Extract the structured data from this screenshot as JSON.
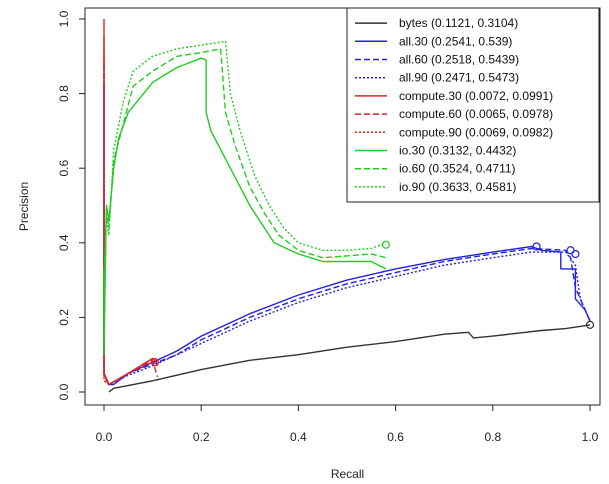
{
  "chart_data": {
    "type": "line",
    "title": "",
    "xlabel": "Recall",
    "ylabel": "Precision",
    "xlim": [
      0,
      1
    ],
    "ylim": [
      0,
      1
    ],
    "xticks": [
      "0.0",
      "0.2",
      "0.4",
      "0.6",
      "0.8",
      "1.0"
    ],
    "yticks": [
      "0.0",
      "0.2",
      "0.4",
      "0.6",
      "0.8",
      "1.0"
    ],
    "grid": false,
    "legend_position": "top-right",
    "series": [
      {
        "name": "bytes (0.1121, 0.3104)",
        "color": "#333333",
        "dash": "solid",
        "points": [
          [
            0.01,
            0.0
          ],
          [
            0.02,
            0.01
          ],
          [
            0.1,
            0.03
          ],
          [
            0.2,
            0.06
          ],
          [
            0.3,
            0.085
          ],
          [
            0.4,
            0.1
          ],
          [
            0.5,
            0.12
          ],
          [
            0.6,
            0.135
          ],
          [
            0.7,
            0.155
          ],
          [
            0.75,
            0.16
          ],
          [
            0.76,
            0.145
          ],
          [
            0.8,
            0.15
          ],
          [
            0.9,
            0.165
          ],
          [
            0.95,
            0.17
          ],
          [
            1.0,
            0.18
          ]
        ],
        "end_marker": [
          1.0,
          0.18
        ]
      },
      {
        "name": "all.30 (0.2541, 0.539)",
        "color": "#2222dd",
        "dash": "solid",
        "points": [
          [
            0.0,
            0.82
          ],
          [
            0.0,
            0.05
          ],
          [
            0.01,
            0.02
          ],
          [
            0.02,
            0.02
          ],
          [
            0.05,
            0.05
          ],
          [
            0.1,
            0.08
          ],
          [
            0.15,
            0.11
          ],
          [
            0.2,
            0.15
          ],
          [
            0.3,
            0.21
          ],
          [
            0.4,
            0.26
          ],
          [
            0.5,
            0.3
          ],
          [
            0.6,
            0.33
          ],
          [
            0.7,
            0.355
          ],
          [
            0.8,
            0.375
          ],
          [
            0.88,
            0.39
          ],
          [
            0.9,
            0.38
          ],
          [
            0.94,
            0.375
          ],
          [
            0.94,
            0.33
          ],
          [
            0.97,
            0.33
          ],
          [
            0.97,
            0.25
          ],
          [
            0.99,
            0.22
          ],
          [
            1.0,
            0.19
          ]
        ],
        "end_marker": [
          0.89,
          0.39
        ]
      },
      {
        "name": "all.60 (0.2518, 0.5439)",
        "color": "#2222dd",
        "dash": "dashed",
        "points": [
          [
            0.0,
            0.88
          ],
          [
            0.0,
            0.05
          ],
          [
            0.01,
            0.02
          ],
          [
            0.05,
            0.05
          ],
          [
            0.1,
            0.075
          ],
          [
            0.15,
            0.1
          ],
          [
            0.2,
            0.14
          ],
          [
            0.3,
            0.2
          ],
          [
            0.4,
            0.25
          ],
          [
            0.5,
            0.29
          ],
          [
            0.6,
            0.32
          ],
          [
            0.7,
            0.35
          ],
          [
            0.8,
            0.37
          ],
          [
            0.88,
            0.385
          ],
          [
            0.95,
            0.38
          ],
          [
            0.96,
            0.36
          ],
          [
            0.97,
            0.28
          ],
          [
            0.99,
            0.22
          ],
          [
            1.0,
            0.19
          ]
        ],
        "end_marker": [
          0.96,
          0.38
        ]
      },
      {
        "name": "all.90 (0.2471, 0.5473)",
        "color": "#2222dd",
        "dash": "dotted",
        "points": [
          [
            0.0,
            0.91
          ],
          [
            0.0,
            0.05
          ],
          [
            0.01,
            0.02
          ],
          [
            0.05,
            0.045
          ],
          [
            0.1,
            0.07
          ],
          [
            0.15,
            0.1
          ],
          [
            0.2,
            0.13
          ],
          [
            0.3,
            0.19
          ],
          [
            0.4,
            0.24
          ],
          [
            0.5,
            0.28
          ],
          [
            0.6,
            0.31
          ],
          [
            0.7,
            0.34
          ],
          [
            0.8,
            0.36
          ],
          [
            0.88,
            0.375
          ],
          [
            0.95,
            0.375
          ],
          [
            0.97,
            0.34
          ],
          [
            0.98,
            0.25
          ],
          [
            1.0,
            0.19
          ]
        ],
        "end_marker": [
          0.97,
          0.37
        ]
      },
      {
        "name": "compute.30 (0.0072, 0.0991)",
        "color": "#dd2222",
        "dash": "solid",
        "points": [
          [
            0.0,
            1.0
          ],
          [
            0.0,
            0.05
          ],
          [
            0.01,
            0.02
          ],
          [
            0.05,
            0.05
          ],
          [
            0.1,
            0.09
          ],
          [
            0.11,
            0.08
          ]
        ],
        "end_marker": null
      },
      {
        "name": "compute.60 (0.0065, 0.0978)",
        "color": "#dd2222",
        "dash": "dashed",
        "points": [
          [
            0.0,
            0.95
          ],
          [
            0.0,
            0.04
          ],
          [
            0.01,
            0.02
          ],
          [
            0.05,
            0.05
          ],
          [
            0.1,
            0.085
          ],
          [
            0.11,
            0.04
          ]
        ],
        "end_marker": null
      },
      {
        "name": "compute.90 (0.0069, 0.0982)",
        "color": "#dd2222",
        "dash": "dotted",
        "points": [
          [
            0.0,
            0.93
          ],
          [
            0.0,
            0.03
          ],
          [
            0.01,
            0.02
          ],
          [
            0.05,
            0.05
          ],
          [
            0.1,
            0.08
          ],
          [
            0.11,
            0.07
          ]
        ],
        "end_marker": [
          0.105,
          0.08
        ]
      },
      {
        "name": "io.30 (0.3132, 0.4432)",
        "color": "#22cc22",
        "dash": "solid",
        "points": [
          [
            0.0,
            0.33
          ],
          [
            0.0,
            0.1
          ],
          [
            0.005,
            0.5
          ],
          [
            0.01,
            0.46
          ],
          [
            0.02,
            0.6
          ],
          [
            0.03,
            0.68
          ],
          [
            0.05,
            0.75
          ],
          [
            0.1,
            0.83
          ],
          [
            0.15,
            0.87
          ],
          [
            0.2,
            0.895
          ],
          [
            0.21,
            0.89
          ],
          [
            0.21,
            0.75
          ],
          [
            0.22,
            0.7
          ],
          [
            0.24,
            0.65
          ],
          [
            0.26,
            0.6
          ],
          [
            0.28,
            0.55
          ],
          [
            0.3,
            0.5
          ],
          [
            0.32,
            0.46
          ],
          [
            0.35,
            0.4
          ],
          [
            0.4,
            0.37
          ],
          [
            0.45,
            0.35
          ],
          [
            0.5,
            0.35
          ],
          [
            0.55,
            0.35
          ],
          [
            0.58,
            0.33
          ]
        ],
        "end_marker": null
      },
      {
        "name": "io.60 (0.3524, 0.4711)",
        "color": "#22cc22",
        "dash": "dashed",
        "points": [
          [
            0.0,
            0.3
          ],
          [
            0.005,
            0.48
          ],
          [
            0.01,
            0.44
          ],
          [
            0.02,
            0.62
          ],
          [
            0.04,
            0.72
          ],
          [
            0.06,
            0.82
          ],
          [
            0.1,
            0.86
          ],
          [
            0.15,
            0.9
          ],
          [
            0.2,
            0.91
          ],
          [
            0.24,
            0.92
          ],
          [
            0.25,
            0.75
          ],
          [
            0.27,
            0.66
          ],
          [
            0.3,
            0.55
          ],
          [
            0.33,
            0.48
          ],
          [
            0.36,
            0.42
          ],
          [
            0.4,
            0.38
          ],
          [
            0.45,
            0.36
          ],
          [
            0.5,
            0.365
          ],
          [
            0.55,
            0.37
          ],
          [
            0.58,
            0.36
          ]
        ],
        "end_marker": null
      },
      {
        "name": "io.90 (0.3633, 0.4581)",
        "color": "#22cc22",
        "dash": "dotted",
        "points": [
          [
            0.0,
            0.3
          ],
          [
            0.005,
            0.47
          ],
          [
            0.01,
            0.42
          ],
          [
            0.02,
            0.65
          ],
          [
            0.04,
            0.78
          ],
          [
            0.06,
            0.86
          ],
          [
            0.1,
            0.9
          ],
          [
            0.15,
            0.92
          ],
          [
            0.2,
            0.93
          ],
          [
            0.25,
            0.94
          ],
          [
            0.26,
            0.8
          ],
          [
            0.28,
            0.7
          ],
          [
            0.31,
            0.58
          ],
          [
            0.34,
            0.5
          ],
          [
            0.37,
            0.44
          ],
          [
            0.4,
            0.4
          ],
          [
            0.45,
            0.38
          ],
          [
            0.5,
            0.38
          ],
          [
            0.55,
            0.385
          ],
          [
            0.58,
            0.4
          ]
        ],
        "end_marker": [
          0.58,
          0.395
        ]
      }
    ]
  }
}
